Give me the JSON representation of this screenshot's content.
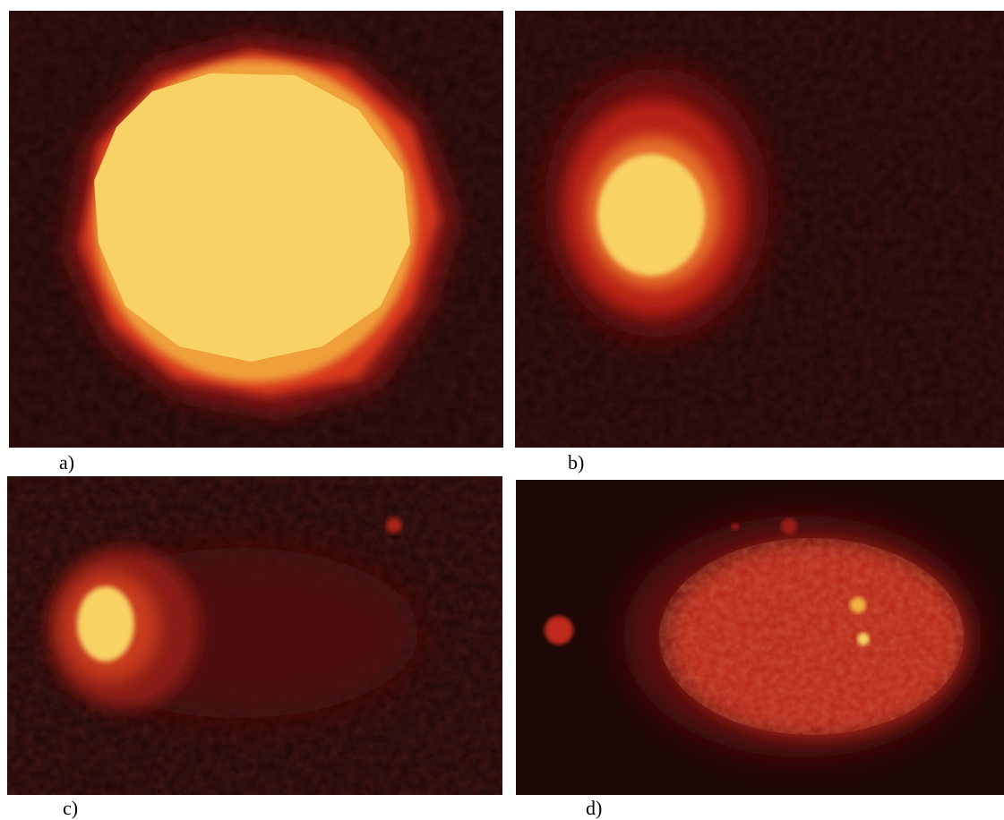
{
  "figure": {
    "panels": [
      {
        "label": "a)"
      },
      {
        "label": "b)"
      },
      {
        "label": "c)"
      },
      {
        "label": "d)"
      }
    ]
  },
  "colors": {
    "background": "#1d0707",
    "core": "#f8d264",
    "halo": "#c82418",
    "glow": "#e8551f"
  }
}
